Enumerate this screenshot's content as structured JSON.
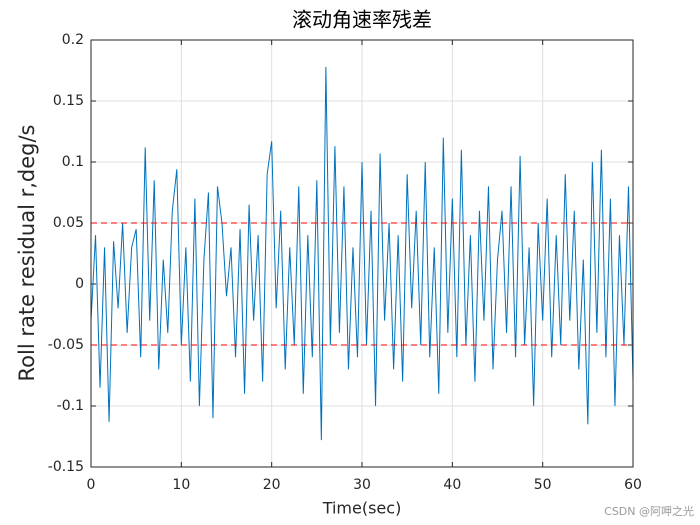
{
  "chart_data": {
    "type": "line",
    "title": "滚动角速率残差",
    "xlabel": "Time(sec)",
    "ylabel": "Roll rate residual r,deg/s",
    "watermark": "CSDN @阿呷之光",
    "x": [
      0,
      0.5,
      1,
      1.5,
      2,
      2.5,
      3,
      3.5,
      4,
      4.5,
      5,
      5.5,
      6,
      6.5,
      7,
      7.5,
      8,
      8.5,
      9,
      9.5,
      10,
      10.5,
      11,
      11.5,
      12,
      12.5,
      13,
      13.5,
      14,
      14.5,
      15,
      15.5,
      16,
      16.5,
      17,
      17.5,
      18,
      18.5,
      19,
      19.5,
      20,
      20.5,
      21,
      21.5,
      22,
      22.5,
      23,
      23.5,
      24,
      24.5,
      25,
      25.5,
      26,
      26.5,
      27,
      27.5,
      28,
      28.5,
      29,
      29.5,
      30,
      30.5,
      31,
      31.5,
      32,
      32.5,
      33,
      33.5,
      34,
      34.5,
      35,
      35.5,
      36,
      36.5,
      37,
      37.5,
      38,
      38.5,
      39,
      39.5,
      40,
      40.5,
      41,
      41.5,
      42,
      42.5,
      43,
      43.5,
      44,
      44.5,
      45,
      45.5,
      46,
      46.5,
      47,
      47.5,
      48,
      48.5,
      49,
      49.5,
      50,
      50.5,
      51,
      51.5,
      52,
      52.5,
      53,
      53.5,
      54,
      54.5,
      55,
      55.5,
      56,
      56.5,
      57,
      57.5,
      58,
      58.5,
      59,
      59.5,
      60
    ],
    "series": [
      {
        "color": "#0072bd",
        "values": [
          -0.03,
          0.04,
          -0.085,
          0.03,
          -0.113,
          0.035,
          -0.02,
          0.05,
          -0.04,
          0.03,
          0.045,
          -0.06,
          0.112,
          -0.03,
          0.085,
          -0.07,
          0.02,
          -0.04,
          0.06,
          0.094,
          -0.05,
          0.03,
          -0.08,
          0.07,
          -0.1,
          0.02,
          0.075,
          -0.11,
          0.08,
          0.05,
          -0.01,
          0.03,
          -0.06,
          0.045,
          -0.09,
          0.065,
          -0.03,
          0.04,
          -0.08,
          0.09,
          0.117,
          -0.02,
          0.06,
          -0.07,
          0.03,
          -0.05,
          0.08,
          -0.09,
          0.04,
          -0.06,
          0.085,
          -0.128,
          0.178,
          -0.05,
          0.113,
          -0.04,
          0.08,
          -0.07,
          0.03,
          -0.06,
          0.1,
          -0.05,
          0.06,
          -0.1,
          0.107,
          -0.03,
          0.05,
          -0.07,
          0.04,
          -0.08,
          0.09,
          -0.02,
          0.06,
          -0.05,
          0.1,
          -0.06,
          0.03,
          -0.09,
          0.12,
          -0.04,
          0.07,
          -0.06,
          0.11,
          -0.05,
          0.04,
          -0.08,
          0.06,
          -0.03,
          0.08,
          -0.07,
          0.02,
          0.06,
          -0.04,
          0.08,
          -0.06,
          0.105,
          -0.05,
          0.03,
          -0.1,
          0.05,
          -0.03,
          0.07,
          -0.06,
          0.04,
          -0.05,
          0.09,
          -0.03,
          0.06,
          -0.07,
          0.02,
          -0.115,
          0.1,
          -0.04,
          0.11,
          -0.06,
          0.07,
          -0.1,
          0.04,
          -0.05,
          0.08,
          -0.08
        ]
      }
    ],
    "hlines": [
      {
        "value": 0.05,
        "color": "#ff0000"
      },
      {
        "value": -0.05,
        "color": "#ff0000"
      }
    ],
    "xlim": [
      0,
      60
    ],
    "xticks": [
      0,
      10,
      20,
      30,
      40,
      50,
      60
    ],
    "ylim": [
      -0.15,
      0.2
    ],
    "yticks": [
      -0.15,
      -0.1,
      -0.05,
      0,
      0.05,
      0.1,
      0.15,
      0.2
    ],
    "grid": true
  }
}
